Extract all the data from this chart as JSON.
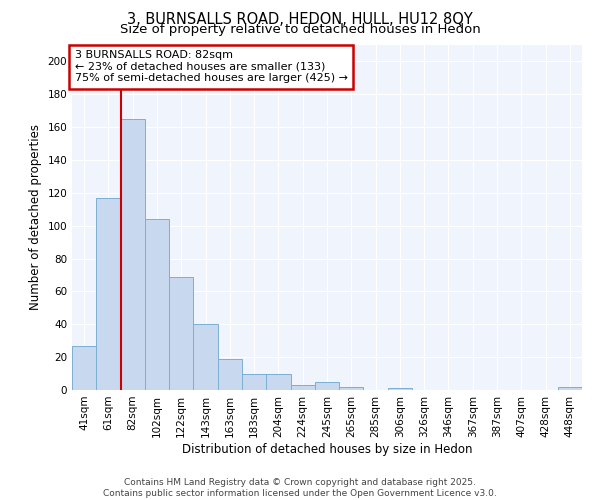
{
  "title1": "3, BURNSALLS ROAD, HEDON, HULL, HU12 8QY",
  "title2": "Size of property relative to detached houses in Hedon",
  "xlabel": "Distribution of detached houses by size in Hedon",
  "ylabel": "Number of detached properties",
  "categories": [
    "41sqm",
    "61sqm",
    "82sqm",
    "102sqm",
    "122sqm",
    "143sqm",
    "163sqm",
    "183sqm",
    "204sqm",
    "224sqm",
    "245sqm",
    "265sqm",
    "285sqm",
    "306sqm",
    "326sqm",
    "346sqm",
    "367sqm",
    "387sqm",
    "407sqm",
    "428sqm",
    "448sqm"
  ],
  "values": [
    27,
    117,
    165,
    104,
    69,
    40,
    19,
    10,
    10,
    3,
    5,
    2,
    0,
    1,
    0,
    0,
    0,
    0,
    0,
    0,
    2
  ],
  "bar_color": "#c8d8ee",
  "bar_edgecolor": "#7bafd4",
  "red_line_index": 2,
  "annotation_line1": "3 BURNSALLS ROAD: 82sqm",
  "annotation_line2": "← 23% of detached houses are smaller (133)",
  "annotation_line3": "75% of semi-detached houses are larger (425) →",
  "annotation_box_color": "#cc0000",
  "ylim": [
    0,
    210
  ],
  "yticks": [
    0,
    20,
    40,
    60,
    80,
    100,
    120,
    140,
    160,
    180,
    200
  ],
  "footer1": "Contains HM Land Registry data © Crown copyright and database right 2025.",
  "footer2": "Contains public sector information licensed under the Open Government Licence v3.0.",
  "bg_color": "#ffffff",
  "plot_bg_color": "#f0f4fc",
  "grid_color": "#ffffff",
  "title1_fontsize": 10.5,
  "title2_fontsize": 9.5,
  "axis_label_fontsize": 8.5,
  "tick_fontsize": 7.5,
  "annotation_fontsize": 8,
  "footer_fontsize": 6.5
}
